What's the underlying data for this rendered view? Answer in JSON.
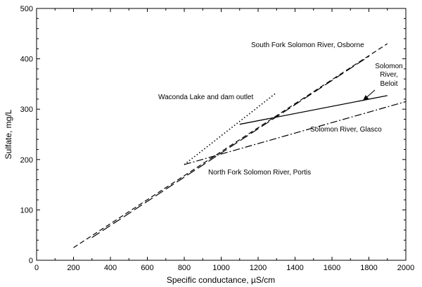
{
  "chart_data": {
    "type": "line",
    "xlabel": "Specific conductance, µS/cm",
    "ylabel": "Sulfate, mg/L",
    "xlim": [
      0,
      2000
    ],
    "ylim": [
      0,
      500
    ],
    "xticks": [
      0,
      200,
      400,
      600,
      800,
      1000,
      1200,
      1400,
      1600,
      1800,
      2000
    ],
    "yticks": [
      0,
      100,
      200,
      300,
      400,
      500
    ],
    "grid": false,
    "series": [
      {
        "key": "waconda",
        "style": "dotted",
        "x": [
          800,
          1300
        ],
        "y": [
          190,
          333
        ]
      },
      {
        "key": "south_fork",
        "style": "dashed",
        "x": [
          200,
          1900
        ],
        "y": [
          25,
          430
        ]
      },
      {
        "key": "north_fork",
        "style": "longdash",
        "x": [
          300,
          1800
        ],
        "y": [
          45,
          405
        ]
      },
      {
        "key": "beloit",
        "style": "solid",
        "x": [
          1100,
          1900
        ],
        "y": [
          270,
          327
        ]
      },
      {
        "key": "glasco",
        "style": "dashdot",
        "x": [
          800,
          2000
        ],
        "y": [
          190,
          315
        ]
      }
    ],
    "annotations": [
      {
        "text": "South Fork Solomon River, Osborne"
      },
      {
        "text": "Waconda Lake and dam outlet"
      },
      {
        "text": "Solomon"
      },
      {
        "text": "River,"
      },
      {
        "text": "Beloit"
      },
      {
        "text": "Solomon River, Glasco"
      },
      {
        "text": "North Fork Solomon River, Portis"
      }
    ]
  }
}
